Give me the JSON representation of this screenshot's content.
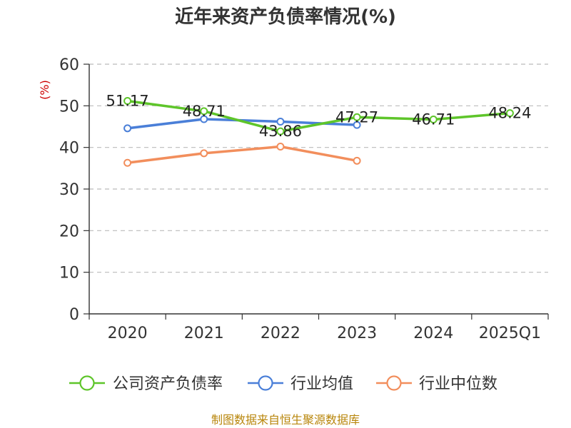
{
  "chart_data": {
    "type": "line",
    "title": "近年来资产负债率情况(%)",
    "ylabel": "(%)",
    "categories": [
      "2020",
      "2021",
      "2022",
      "2023",
      "2024",
      "2025Q1"
    ],
    "ylim": [
      0,
      60
    ],
    "yticks": [
      0,
      10,
      20,
      30,
      40,
      50,
      60
    ],
    "grid": true,
    "legend_position": "bottom",
    "series": [
      {
        "name": "公司资产负债率",
        "color": "#5ec52a",
        "values": [
          51.17,
          48.71,
          43.86,
          47.27,
          46.71,
          48.24
        ],
        "labels": [
          "51.17",
          "48.71",
          "43.86",
          "47.27",
          "46.71",
          "48.24"
        ]
      },
      {
        "name": "行业均值",
        "color": "#4a7fd8",
        "values": [
          44.6,
          46.8,
          46.2,
          45.4,
          null,
          null
        ]
      },
      {
        "name": "行业中位数",
        "color": "#f28e5c",
        "values": [
          36.3,
          38.6,
          40.2,
          36.8,
          null,
          null
        ]
      }
    ],
    "source": "制图数据来自恒生聚源数据库"
  }
}
